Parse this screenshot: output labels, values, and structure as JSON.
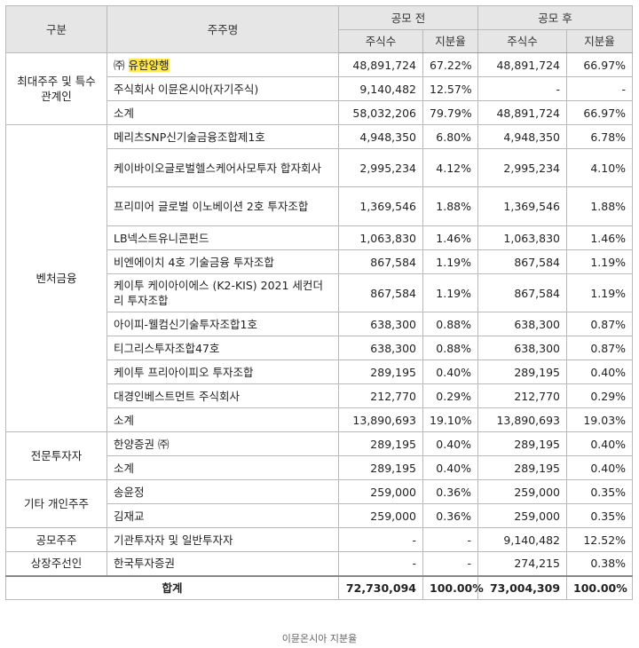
{
  "headers": {
    "category": "구분",
    "holder": "주주명",
    "before": "공모 전",
    "after": "공모 후",
    "shares": "주식수",
    "ratio": "지분율"
  },
  "groups": [
    {
      "name": "최대주주 및 특수관계인",
      "rows": [
        {
          "prefix": "㈜",
          "name": "유한양행",
          "highlight": true,
          "before_shares": "48,891,724",
          "before_ratio": "67.22%",
          "after_shares": "48,891,724",
          "after_ratio": "66.97%"
        },
        {
          "prefix": "",
          "name": "주식회사 이뮨온시아(자기주식)",
          "highlight": false,
          "before_shares": "9,140,482",
          "before_ratio": "12.57%",
          "after_shares": "-",
          "after_ratio": "-"
        },
        {
          "prefix": "",
          "name": "소계",
          "highlight": false,
          "before_shares": "58,032,206",
          "before_ratio": "79.79%",
          "after_shares": "48,891,724",
          "after_ratio": "66.97%"
        }
      ]
    },
    {
      "name": "벤처금융",
      "rows": [
        {
          "prefix": "",
          "name": "메리츠SNP신기술금융조합제1호",
          "highlight": false,
          "before_shares": "4,948,350",
          "before_ratio": "6.80%",
          "after_shares": "4,948,350",
          "after_ratio": "6.78%"
        },
        {
          "prefix": "",
          "name": "케이바이오글로벌헬스케어사모투자 합자회사",
          "highlight": false,
          "before_shares": "2,995,234",
          "before_ratio": "4.12%",
          "after_shares": "2,995,234",
          "after_ratio": "4.10%"
        },
        {
          "prefix": "",
          "name": "프리미어 글로벌 이노베이션 2호 투자조합",
          "highlight": false,
          "before_shares": "1,369,546",
          "before_ratio": "1.88%",
          "after_shares": "1,369,546",
          "after_ratio": "1.88%"
        },
        {
          "prefix": "",
          "name": "LB넥스트유니콘펀드",
          "highlight": false,
          "before_shares": "1,063,830",
          "before_ratio": "1.46%",
          "after_shares": "1,063,830",
          "after_ratio": "1.46%"
        },
        {
          "prefix": "",
          "name": "비엔에이치 4호 기술금융 투자조합",
          "highlight": false,
          "before_shares": "867,584",
          "before_ratio": "1.19%",
          "after_shares": "867,584",
          "after_ratio": "1.19%"
        },
        {
          "prefix": "",
          "name": "케이투 케이아이에스 (K2-KIS) 2021 세컨더리 투자조합",
          "highlight": false,
          "before_shares": "867,584",
          "before_ratio": "1.19%",
          "after_shares": "867,584",
          "after_ratio": "1.19%"
        },
        {
          "prefix": "",
          "name": "아이피-웰컴신기술투자조합1호",
          "highlight": false,
          "before_shares": "638,300",
          "before_ratio": "0.88%",
          "after_shares": "638,300",
          "after_ratio": "0.87%"
        },
        {
          "prefix": "",
          "name": "티그리스투자조합47호",
          "highlight": false,
          "before_shares": "638,300",
          "before_ratio": "0.88%",
          "after_shares": "638,300",
          "after_ratio": "0.87%"
        },
        {
          "prefix": "",
          "name": "케이투 프리아이피오 투자조합",
          "highlight": false,
          "before_shares": "289,195",
          "before_ratio": "0.40%",
          "after_shares": "289,195",
          "after_ratio": "0.40%"
        },
        {
          "prefix": "",
          "name": "대경인베스트먼트 주식회사",
          "highlight": false,
          "before_shares": "212,770",
          "before_ratio": "0.29%",
          "after_shares": "212,770",
          "after_ratio": "0.29%"
        },
        {
          "prefix": "",
          "name": "소계",
          "highlight": false,
          "before_shares": "13,890,693",
          "before_ratio": "19.10%",
          "after_shares": "13,890,693",
          "after_ratio": "19.03%"
        }
      ]
    },
    {
      "name": "전문투자자",
      "rows": [
        {
          "prefix": "",
          "name": "한양증권 ㈜",
          "highlight": false,
          "before_shares": "289,195",
          "before_ratio": "0.40%",
          "after_shares": "289,195",
          "after_ratio": "0.40%"
        },
        {
          "prefix": "",
          "name": "소계",
          "highlight": false,
          "before_shares": "289,195",
          "before_ratio": "0.40%",
          "after_shares": "289,195",
          "after_ratio": "0.40%"
        }
      ]
    },
    {
      "name": "기타 개인주주",
      "rows": [
        {
          "prefix": "",
          "name": "송윤정",
          "highlight": false,
          "before_shares": "259,000",
          "before_ratio": "0.36%",
          "after_shares": "259,000",
          "after_ratio": "0.35%"
        },
        {
          "prefix": "",
          "name": "김재교",
          "highlight": false,
          "before_shares": "259,000",
          "before_ratio": "0.36%",
          "after_shares": "259,000",
          "after_ratio": "0.35%"
        }
      ]
    },
    {
      "name": "공모주주",
      "rows": [
        {
          "prefix": "",
          "name": "기관투자자 및 일반투자자",
          "highlight": false,
          "before_shares": "-",
          "before_ratio": "-",
          "after_shares": "9,140,482",
          "after_ratio": "12.52%"
        }
      ]
    },
    {
      "name": "상장주선인",
      "rows": [
        {
          "prefix": "",
          "name": "한국투자증권",
          "highlight": false,
          "before_shares": "-",
          "before_ratio": "-",
          "after_shares": "274,215",
          "after_ratio": "0.38%"
        }
      ]
    }
  ],
  "total": {
    "label": "합계",
    "before_shares": "72,730,094",
    "before_ratio": "100.00%",
    "after_shares": "73,004,309",
    "after_ratio": "100.00%"
  },
  "caption": "이뮨온시아 지분율",
  "colors": {
    "header_bg": "#e6e6e6",
    "highlight": "#ffe84a",
    "border": "#b9b9b9"
  }
}
